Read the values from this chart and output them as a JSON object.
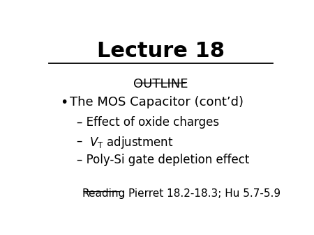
{
  "title": "Lecture 18",
  "bg_color": "#ffffff",
  "outline_text": "OUTLINE",
  "bullet_text": "The MOS Capacitor (cont’d)",
  "sub_item1": "– Effect of oxide charges",
  "sub_item2_prefix": "– ",
  "sub_item2_math": "$\\mathit{V}_\\mathsf{T}$ adjustment",
  "sub_item3": "– Poly-Si gate depletion effect",
  "reading_underline": "Reading",
  "reading_rest": ": Pierret 18.2-18.3; Hu 5.7-5.9"
}
